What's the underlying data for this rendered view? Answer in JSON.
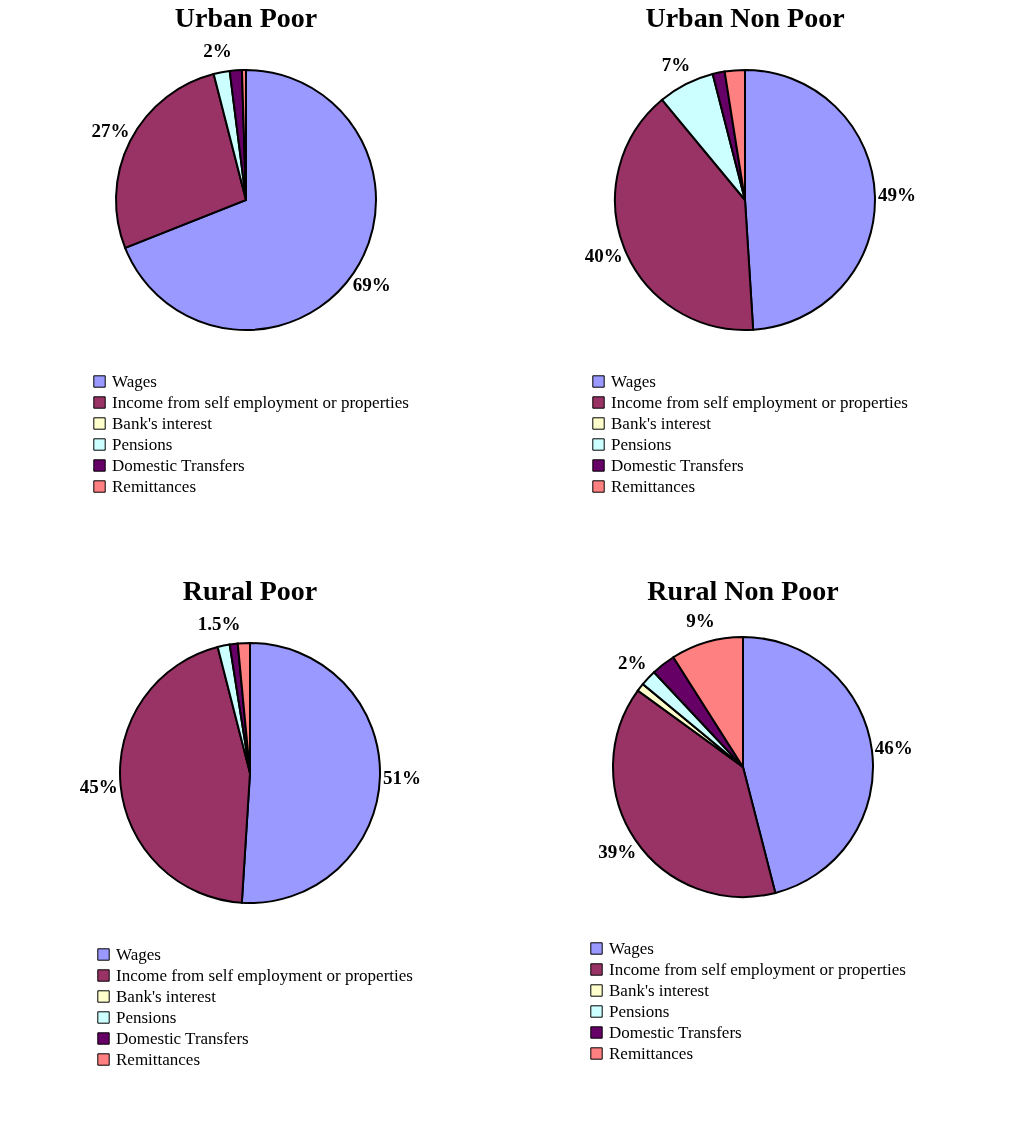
{
  "chart_data": [
    {
      "type": "pie",
      "title": "Urban Poor",
      "categories": [
        "Wages",
        "Income from self employment or properties",
        "Bank's interest",
        "Pensions",
        "Domestic Transfers",
        "Remittances"
      ],
      "values": [
        69,
        27,
        0,
        2,
        1.5,
        0.5
      ],
      "colors": [
        "#9999ff",
        "#993366",
        "#ffffcc",
        "#ccffff",
        "#660066",
        "#ff8080"
      ],
      "value_labels": [
        "69%",
        "27%",
        null,
        "2%",
        null,
        null
      ],
      "legend": "bottom"
    },
    {
      "type": "pie",
      "title": "Urban Non Poor",
      "categories": [
        "Wages",
        "Income from self employment or properties",
        "Bank's interest",
        "Pensions",
        "Domestic Transfers",
        "Remittances"
      ],
      "values": [
        49,
        40,
        0,
        7,
        1.5,
        2.5
      ],
      "colors": [
        "#9999ff",
        "#993366",
        "#ffffcc",
        "#ccffff",
        "#660066",
        "#ff8080"
      ],
      "value_labels": [
        "49%",
        "40%",
        null,
        "7%",
        null,
        null
      ],
      "legend": "bottom"
    },
    {
      "type": "pie",
      "title": "Rural Poor",
      "categories": [
        "Wages",
        "Income from self employment or properties",
        "Bank's interest",
        "Pensions",
        "Domestic Transfers",
        "Remittances"
      ],
      "values": [
        51,
        45,
        0,
        1.5,
        1,
        1.5
      ],
      "colors": [
        "#9999ff",
        "#993366",
        "#ffffcc",
        "#ccffff",
        "#660066",
        "#ff8080"
      ],
      "value_labels": [
        "51%",
        "45%",
        null,
        "1.5%",
        null,
        null
      ],
      "legend": "bottom"
    },
    {
      "type": "pie",
      "title": "Rural Non Poor",
      "categories": [
        "Wages",
        "Income from self employment or properties",
        "Bank's interest",
        "Pensions",
        "Domestic Transfers",
        "Remittances"
      ],
      "values": [
        46,
        39,
        1,
        2,
        3,
        9
      ],
      "colors": [
        "#9999ff",
        "#993366",
        "#ffffcc",
        "#ccffff",
        "#660066",
        "#ff8080"
      ],
      "value_labels": [
        "46%",
        "39%",
        null,
        "2%",
        null,
        "9%"
      ],
      "legend": "bottom"
    }
  ]
}
